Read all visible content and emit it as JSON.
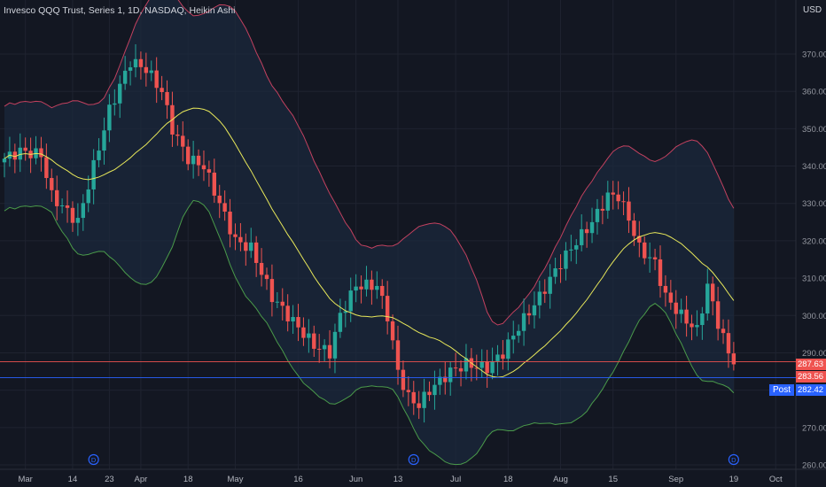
{
  "header": {
    "title": "Invesco QQQ Trust, Series 1, 1D, NASDAQ, Heikin Ashi",
    "currency": "USD"
  },
  "colors": {
    "up": "#26a69a",
    "down": "#ef5350",
    "ma": "#e8e85a",
    "upper": "#c2415f",
    "lower": "#4a9a4a",
    "band_fill": "#1b2a3d",
    "bg": "#131722",
    "grid": "#1f2330",
    "post": "#2962ff"
  },
  "chart_data": {
    "type": "candlestick",
    "title": "Invesco QQQ Trust, Series 1, 1D, NASDAQ, Heikin Ashi",
    "ylim": [
      258,
      376
    ],
    "y_ticks": [
      260,
      270,
      280,
      290,
      300,
      310,
      320,
      330,
      340,
      350,
      360,
      370
    ],
    "x_ticks": [
      {
        "label": "Mar",
        "i": 4
      },
      {
        "label": "14",
        "i": 13
      },
      {
        "label": "23",
        "i": 20
      },
      {
        "label": "Apr",
        "i": 26
      },
      {
        "label": "18",
        "i": 35
      },
      {
        "label": "May",
        "i": 44
      },
      {
        "label": "16",
        "i": 56
      },
      {
        "label": "Jun",
        "i": 67
      },
      {
        "label": "13",
        "i": 75
      },
      {
        "label": "Jul",
        "i": 86
      },
      {
        "label": "18",
        "i": 96
      },
      {
        "label": "Aug",
        "i": 106
      },
      {
        "label": "15",
        "i": 116
      },
      {
        "label": "Sep",
        "i": 128
      },
      {
        "label": "19",
        "i": 139
      },
      {
        "label": "Oct",
        "i": 147
      }
    ],
    "count": 140,
    "price_keyframes": [
      [
        0,
        342
      ],
      [
        3,
        344
      ],
      [
        7,
        343
      ],
      [
        9,
        332
      ],
      [
        14,
        325
      ],
      [
        17,
        340
      ],
      [
        20,
        355
      ],
      [
        24,
        368
      ],
      [
        27,
        366
      ],
      [
        30,
        360
      ],
      [
        32,
        350
      ],
      [
        35,
        342
      ],
      [
        38,
        340
      ],
      [
        41,
        330
      ],
      [
        44,
        320
      ],
      [
        47,
        318
      ],
      [
        51,
        305
      ],
      [
        54,
        300
      ],
      [
        59,
        292
      ],
      [
        62,
        290
      ],
      [
        64,
        300
      ],
      [
        67,
        308
      ],
      [
        71,
        308
      ],
      [
        73,
        300
      ],
      [
        75,
        285
      ],
      [
        77,
        278
      ],
      [
        79,
        276
      ],
      [
        81,
        280
      ],
      [
        85,
        285
      ],
      [
        88,
        287
      ],
      [
        92,
        286
      ],
      [
        95,
        290
      ],
      [
        98,
        297
      ],
      [
        102,
        305
      ],
      [
        105,
        312
      ],
      [
        108,
        318
      ],
      [
        112,
        325
      ],
      [
        115,
        332
      ],
      [
        117,
        332
      ],
      [
        119,
        326
      ],
      [
        121,
        318
      ],
      [
        124,
        314
      ],
      [
        126,
        305
      ],
      [
        129,
        300
      ],
      [
        132,
        296
      ],
      [
        134,
        308
      ],
      [
        136,
        298
      ],
      [
        138,
        290
      ],
      [
        139,
        288
      ]
    ],
    "indicators": [
      "Bollinger Bands (20, 2)"
    ],
    "price_labels": [
      {
        "value": "287.63",
        "price": 287.63,
        "color": "#ef5350"
      },
      {
        "value": "283.56",
        "price": 283.56,
        "color": "#ef5350"
      },
      {
        "value": "282.42",
        "price": 282.42,
        "color": "#2962ff",
        "tag": "Post"
      }
    ],
    "dividends": [
      {
        "label": "D",
        "i": 17
      },
      {
        "label": "D",
        "i": 78
      },
      {
        "label": "D",
        "i": 139
      }
    ]
  }
}
